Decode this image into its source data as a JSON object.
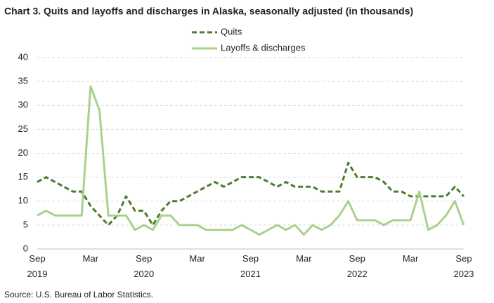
{
  "chart_data": {
    "type": "line",
    "title": "Chart 3. Quits and layoffs and discharges in Alaska, seasonally adjusted (in thousands)",
    "source": "Source: U.S. Bureau of Labor Statistics.",
    "categories": [
      "Sep 2019",
      null,
      null,
      null,
      null,
      null,
      "Mar",
      null,
      null,
      null,
      null,
      null,
      "Sep 2020",
      null,
      null,
      null,
      null,
      null,
      "Mar",
      null,
      null,
      null,
      null,
      null,
      "Sep 2021",
      null,
      null,
      null,
      null,
      null,
      "Mar",
      null,
      null,
      null,
      null,
      null,
      "Sep 2022",
      null,
      null,
      null,
      null,
      null,
      "Mar",
      null,
      null,
      null,
      null,
      null,
      "Sep 2023"
    ],
    "series": [
      {
        "name": "Quits",
        "color": "#4f7b2e",
        "dashed": true,
        "values": [
          14,
          15,
          14,
          13,
          12,
          12,
          9,
          7,
          5,
          7,
          11,
          8,
          8,
          5,
          8,
          10,
          10,
          11,
          12,
          13,
          14,
          13,
          14,
          15,
          15,
          15,
          14,
          13,
          14,
          13,
          13,
          13,
          12,
          12,
          12,
          18,
          15,
          15,
          15,
          14,
          12,
          12,
          11,
          11,
          11,
          11,
          11,
          13,
          11
        ]
      },
      {
        "name": "Layoffs & discharges",
        "color": "#a9d18e",
        "dashed": false,
        "values": [
          7,
          8,
          7,
          7,
          7,
          7,
          34,
          29,
          7,
          7,
          7,
          4,
          5,
          4,
          7,
          7,
          5,
          5,
          5,
          4,
          4,
          4,
          4,
          5,
          4,
          3,
          4,
          5,
          4,
          5,
          3,
          5,
          4,
          5,
          7,
          10,
          6,
          6,
          6,
          5,
          6,
          6,
          6,
          12,
          4,
          5,
          7,
          10,
          5
        ]
      }
    ],
    "ylim": [
      0,
      40
    ],
    "yticks": [
      0,
      5,
      10,
      15,
      20,
      25,
      30,
      35,
      40
    ],
    "grid": true
  }
}
